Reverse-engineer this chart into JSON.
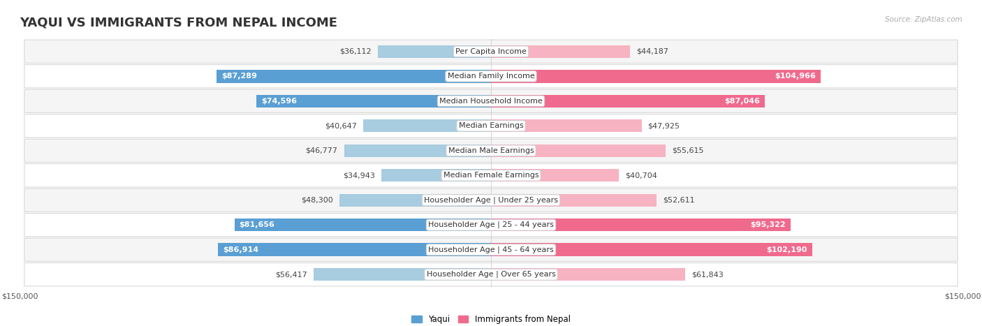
{
  "title": "YAQUI VS IMMIGRANTS FROM NEPAL INCOME",
  "source": "Source: ZipAtlas.com",
  "categories": [
    "Per Capita Income",
    "Median Family Income",
    "Median Household Income",
    "Median Earnings",
    "Median Male Earnings",
    "Median Female Earnings",
    "Householder Age | Under 25 years",
    "Householder Age | 25 - 44 years",
    "Householder Age | 45 - 64 years",
    "Householder Age | Over 65 years"
  ],
  "yaqui_values": [
    36112,
    87289,
    74596,
    40647,
    46777,
    34943,
    48300,
    81656,
    86914,
    56417
  ],
  "nepal_values": [
    44187,
    104966,
    87046,
    47925,
    55615,
    40704,
    52611,
    95322,
    102190,
    61843
  ],
  "yaqui_color_light": "#a8cce0",
  "yaqui_color_dark": "#5a9fd4",
  "nepal_color_light": "#f7b3c2",
  "nepal_color_dark": "#f06a8e",
  "yaqui_threshold": 60000,
  "nepal_threshold": 80000,
  "max_value": 150000,
  "xlabel_left": "$150,000",
  "xlabel_right": "$150,000",
  "legend_yaqui": "Yaqui",
  "legend_nepal": "Immigrants from Nepal",
  "bar_height": 0.52,
  "row_color_odd": "#f5f5f5",
  "row_color_even": "#ffffff",
  "title_fontsize": 13,
  "value_fontsize": 8,
  "category_fontsize": 8
}
